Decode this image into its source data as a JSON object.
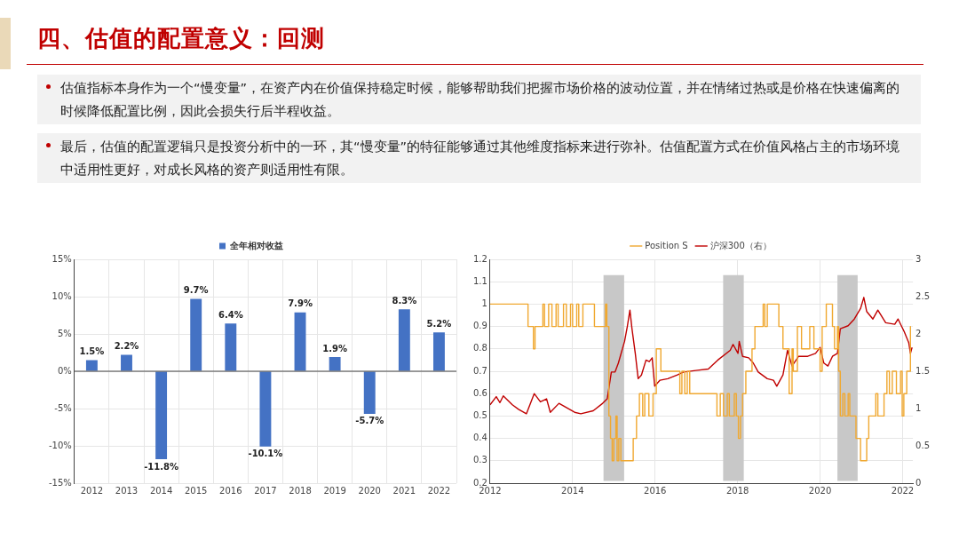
{
  "chart_data": [
    {
      "type": "other",
      "title": "四、估值的配置意义：回测",
      "annotations": [
        "估值指标本身作为一个“慢变量”，在资产内在价值保持稳定时候，能够帮助我们把握市场价格的波动位置，并在情绪过热或是价格在快速偏离的时候降低配置比例，因此会损失行后半程收益。",
        "最后，估值的配置逻辑只是投资分析中的一环，其“慢变量”的特征能够通过其他维度指标来进行弥补。估值配置方式在价值风格占主的市场环境中适用性更好，对成长风格的资产则适用性有限。"
      ]
    },
    {
      "type": "bar",
      "categories": [
        "2012",
        "2013",
        "2014",
        "2015",
        "2016",
        "2017",
        "2018",
        "2019",
        "2020",
        "2021",
        "2022"
      ],
      "series": [
        {
          "name": "全年相对收益",
          "color": "#4472c4",
          "values": [
            1.5,
            2.2,
            -11.8,
            9.7,
            6.4,
            -10.1,
            7.9,
            1.9,
            -5.7,
            8.3,
            5.2
          ],
          "value_labels": [
            "1.5%",
            "2.2%",
            "-11.8%",
            "9.7%",
            "6.4%",
            "-10.1%",
            "7.9%",
            "1.9%",
            "-5.7%",
            "8.3%",
            "5.2%"
          ]
        }
      ],
      "ylim": [
        -15,
        15
      ],
      "yticks": [
        {
          "value": -15,
          "label": "-15%"
        },
        {
          "value": -10,
          "label": "-10%"
        },
        {
          "value": -5,
          "label": "-5%"
        },
        {
          "value": 0,
          "label": "0%"
        },
        {
          "value": 5,
          "label": "5%"
        },
        {
          "value": 10,
          "label": "10%"
        },
        {
          "value": 15,
          "label": "15%"
        }
      ],
      "grid": true,
      "legend": "top"
    },
    {
      "type": "line",
      "xlim": [
        2012,
        2022.25
      ],
      "xticks": [
        2012,
        2014,
        2016,
        2018,
        2020,
        2022
      ],
      "ylim": [
        0.2,
        1.2
      ],
      "yticks": [
        0.2,
        0.3,
        0.4,
        0.5,
        0.6,
        0.7,
        0.8,
        0.9,
        1,
        1.1,
        1.2
      ],
      "y2lim": [
        0,
        3
      ],
      "y2ticks": [
        0,
        0.5,
        1,
        1.5,
        2,
        2.5,
        3
      ],
      "grid": true,
      "legend": "top",
      "bands": [
        {
          "axis": "x",
          "from": 2014.75,
          "to": 2015.25,
          "color": "#c8c8c8"
        },
        {
          "axis": "x",
          "from": 2017.65,
          "to": 2018.15,
          "color": "#c8c8c8"
        },
        {
          "axis": "x",
          "from": 2020.42,
          "to": 2020.91,
          "color": "#c8c8c8"
        }
      ],
      "series": [
        {
          "name": "Position S",
          "type": "step",
          "color": "#f0a830",
          "x": [
            2012,
            2012.92,
            2013.05,
            2013.09,
            2013.28,
            2013.32,
            2013.42,
            2013.5,
            2013.6,
            2013.65,
            2013.78,
            2013.85,
            2013.95,
            2014.0,
            2014.1,
            2014.15,
            2014.25,
            2014.53,
            2014.8,
            2014.83,
            2014.88,
            2014.92,
            2014.96,
            2015.0,
            2015.05,
            2015.08,
            2015.12,
            2015.17,
            2015.47,
            2015.55,
            2015.62,
            2015.7,
            2015.75,
            2015.85,
            2015.95,
            2016.03,
            2016.14,
            2016.6,
            2016.65,
            2016.72,
            2016.78,
            2016.84,
            2017.5,
            2017.58,
            2017.66,
            2017.75,
            2017.8,
            2017.92,
            2017.97,
            2018.02,
            2018.07,
            2018.12,
            2018.2,
            2018.35,
            2018.42,
            2018.62,
            2018.66,
            2018.72,
            2019.0,
            2019.1,
            2019.25,
            2019.32,
            2019.35,
            2019.45,
            2019.55,
            2019.75,
            2019.85,
            2020.0,
            2020.05,
            2020.15,
            2020.3,
            2020.35,
            2020.42,
            2020.45,
            2020.49,
            2020.55,
            2020.6,
            2020.68,
            2020.72,
            2020.87,
            2020.98,
            2021.13,
            2021.18,
            2021.35,
            2021.4,
            2021.55,
            2021.62,
            2021.68,
            2021.75,
            2021.85,
            2021.95,
            2021.99,
            2022.03,
            2022.1,
            2022.19,
            2022.2
          ],
          "values": [
            1,
            0.9,
            0.8,
            0.9,
            1,
            0.9,
            1,
            0.9,
            1,
            0.9,
            1,
            0.9,
            1,
            0.9,
            1,
            0.9,
            1,
            0.9,
            1,
            0.9,
            0.5,
            0.4,
            0.3,
            0.4,
            0.5,
            0.3,
            0.4,
            0.3,
            0.4,
            0.5,
            0.6,
            0.5,
            0.6,
            0.5,
            0.6,
            0.8,
            0.7,
            0.6,
            0.7,
            0.6,
            0.7,
            0.6,
            0.5,
            0.6,
            0.5,
            0.6,
            0.5,
            0.6,
            0.5,
            0.4,
            0.5,
            0.6,
            0.7,
            0.8,
            0.9,
            1,
            0.9,
            1,
            0.9,
            0.8,
            0.6,
            0.8,
            0.7,
            0.9,
            0.8,
            0.9,
            0.8,
            0.7,
            0.9,
            1,
            0.9,
            0.8,
            0.9,
            0.7,
            0.5,
            0.6,
            0.5,
            0.6,
            0.5,
            0.4,
            0.3,
            0.4,
            0.5,
            0.6,
            0.5,
            0.6,
            0.7,
            0.6,
            0.7,
            0.6,
            0.7,
            0.5,
            0.6,
            0.7,
            0.9,
            0.9
          ]
        },
        {
          "name": "沪深300（右）",
          "type": "line",
          "axis": "y2",
          "color": "#c00000",
          "x": [
            2012.0,
            2012.15,
            2012.24,
            2012.32,
            2012.54,
            2012.69,
            2012.88,
            2013.07,
            2013.22,
            2013.37,
            2013.46,
            2013.67,
            2013.86,
            2014.05,
            2014.2,
            2014.5,
            2014.73,
            2014.84,
            2014.94,
            2015.03,
            2015.11,
            2015.26,
            2015.33,
            2015.39,
            2015.44,
            2015.52,
            2015.59,
            2015.67,
            2015.78,
            2015.86,
            2015.93,
            2015.99,
            2016.12,
            2016.31,
            2016.54,
            2016.69,
            2016.99,
            2017.29,
            2017.52,
            2017.82,
            2017.89,
            2018.01,
            2018.04,
            2018.12,
            2018.27,
            2018.38,
            2018.5,
            2018.72,
            2018.87,
            2018.95,
            2019.1,
            2019.21,
            2019.32,
            2019.48,
            2019.7,
            2019.89,
            2020.0,
            2020.09,
            2020.19,
            2020.3,
            2020.42,
            2020.49,
            2020.68,
            2020.83,
            2020.98,
            2021.06,
            2021.13,
            2021.28,
            2021.4,
            2021.59,
            2021.81,
            2021.89,
            2022.04,
            2022.15,
            2022.19,
            2022.23
          ],
          "values": [
            1.05,
            1.16,
            1.08,
            1.17,
            1.05,
            0.99,
            0.93,
            1.2,
            1.09,
            1.13,
            0.95,
            1.07,
            1.01,
            0.95,
            0.93,
            0.97,
            1.07,
            1.13,
            1.49,
            1.49,
            1.61,
            1.9,
            2.11,
            2.32,
            2.07,
            1.74,
            1.4,
            1.45,
            1.65,
            1.63,
            1.68,
            1.3,
            1.38,
            1.4,
            1.45,
            1.49,
            1.51,
            1.53,
            1.65,
            1.78,
            1.86,
            1.74,
            1.9,
            1.7,
            1.68,
            1.61,
            1.49,
            1.4,
            1.38,
            1.3,
            1.45,
            1.78,
            1.57,
            1.7,
            1.7,
            1.74,
            1.82,
            1.61,
            1.57,
            1.7,
            1.74,
            2.07,
            2.11,
            2.2,
            2.34,
            2.49,
            2.3,
            2.2,
            2.32,
            2.15,
            2.13,
            2.2,
            2.03,
            1.88,
            1.74,
            1.82
          ]
        }
      ]
    }
  ]
}
